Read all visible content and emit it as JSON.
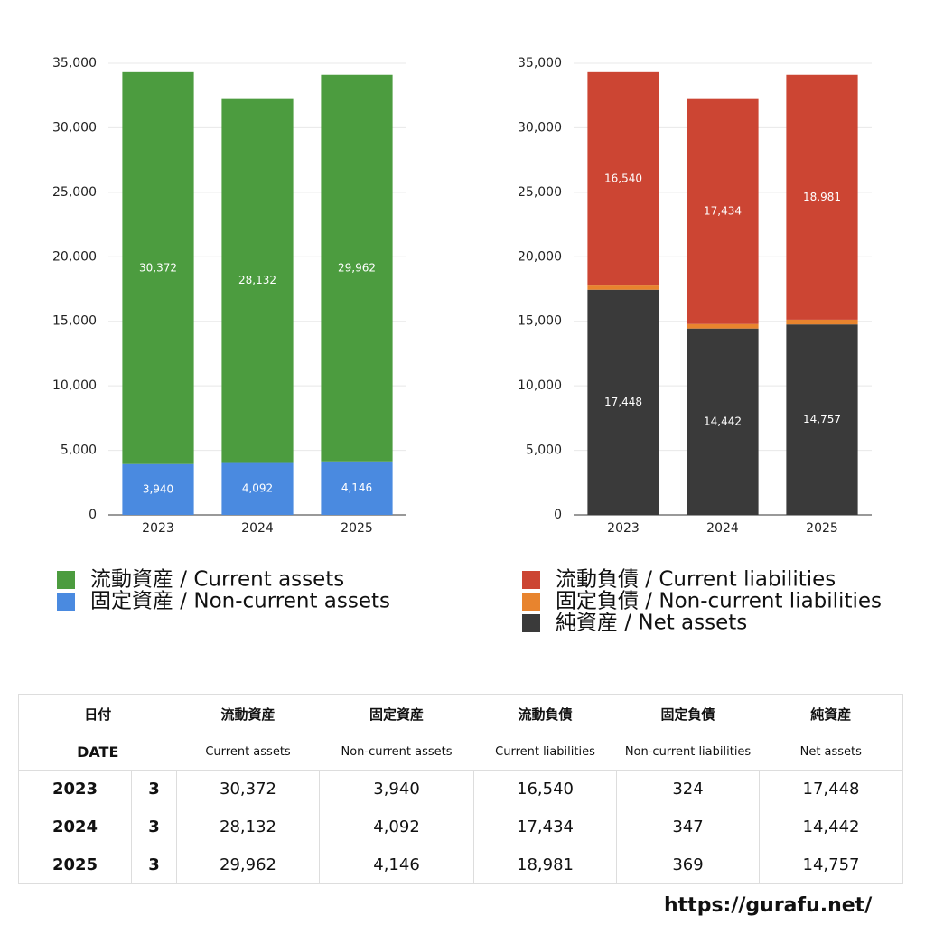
{
  "chart_data": [
    {
      "type": "bar",
      "stacked": true,
      "categories": [
        "2023",
        "2024",
        "2025"
      ],
      "series": [
        {
          "name": "流動資産 / Current assets",
          "color": "#4c9c3f",
          "values": [
            30372,
            28132,
            29962
          ],
          "value_labels": [
            "30,372",
            "28,132",
            "29,962"
          ]
        },
        {
          "name": "固定資産 / Non-current assets",
          "color": "#4a8ae0",
          "values": [
            3940,
            4092,
            4146
          ],
          "value_labels": [
            "3,940",
            "4,092",
            "4,146"
          ]
        }
      ],
      "ylim": [
        0,
        35000
      ],
      "yticks": [
        0,
        {
          "value": 5000,
          "label": "5,000"
        },
        {
          "value": 10000,
          "label": "10,000"
        },
        {
          "value": 15000,
          "label": "15,000"
        },
        {
          "value": 20000,
          "label": "20,000"
        },
        {
          "value": 25000,
          "label": "25,000"
        },
        {
          "value": 30000,
          "label": "30,000"
        },
        {
          "value": 35000,
          "label": "35,000"
        }
      ],
      "grid": true
    },
    {
      "type": "bar",
      "stacked": true,
      "categories": [
        "2023",
        "2024",
        "2025"
      ],
      "series": [
        {
          "name": "流動負債 / Current liabilities",
          "color": "#cc4533",
          "values": [
            16540,
            17434,
            18981
          ],
          "value_labels": [
            "16,540",
            "17,434",
            "18,981"
          ]
        },
        {
          "name": "固定負債 / Non-current liabilities",
          "color": "#e8842e",
          "values": [
            324,
            347,
            369
          ]
        },
        {
          "name": "純資産 / Net assets",
          "color": "#3a3a3a",
          "values": [
            17448,
            14442,
            14757
          ],
          "value_labels": [
            "17,448",
            "14,442",
            "14,757"
          ]
        }
      ],
      "ylim": [
        0,
        35000
      ],
      "yticks": [
        0,
        {
          "value": 5000,
          "label": "5,000"
        },
        {
          "value": 10000,
          "label": "10,000"
        },
        {
          "value": 15000,
          "label": "15,000"
        },
        {
          "value": 20000,
          "label": "20,000"
        },
        {
          "value": 25000,
          "label": "25,000"
        },
        {
          "value": 30000,
          "label": "30,000"
        },
        {
          "value": 35000,
          "label": "35,000"
        }
      ],
      "grid": true
    }
  ],
  "table": {
    "header": [
      "日付",
      "流動資産",
      "固定資産",
      "流動負債",
      "固定負債",
      "純資産"
    ],
    "subheader": [
      "DATE",
      "Current assets",
      "Non-current assets",
      "Current liabilities",
      "Non-current liabilities",
      "Net assets"
    ],
    "rows": [
      [
        "2023",
        "3",
        "30,372",
        "3,940",
        "16,540",
        "324",
        "17,448"
      ],
      [
        "2024",
        "3",
        "28,132",
        "4,092",
        "17,434",
        "347",
        "14,442"
      ],
      [
        "2025",
        "3",
        "29,962",
        "4,146",
        "18,981",
        "369",
        "14,757"
      ]
    ]
  },
  "footer": "https://gurafu.net/"
}
